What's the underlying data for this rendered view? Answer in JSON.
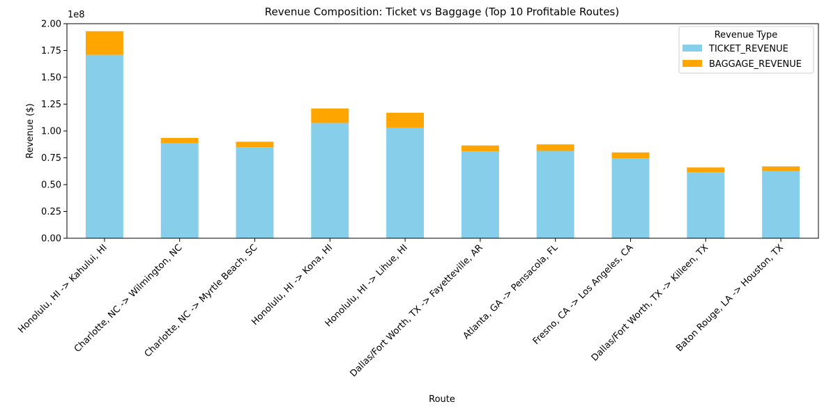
{
  "chart_data": {
    "type": "bar",
    "stacked": true,
    "title": "Revenue Composition: Ticket vs Baggage (Top 10 Profitable Routes)",
    "xlabel": "Route",
    "ylabel": "Revenue ($)",
    "y_multiplier_label": "1e8",
    "ylim": [
      0,
      200000000
    ],
    "yticks": [
      0,
      25000000,
      50000000,
      75000000,
      100000000,
      125000000,
      150000000,
      175000000,
      200000000
    ],
    "ytick_labels": [
      "0.00",
      "0.25",
      "0.50",
      "0.75",
      "1.00",
      "1.25",
      "1.50",
      "1.75",
      "2.00"
    ],
    "grid": false,
    "legend_position": "top-right",
    "legend_title": "Revenue Type",
    "categories": [
      "Honolulu, HI -> Kahului, HI",
      "Charlotte, NC -> Wilmington, NC",
      "Charlotte, NC -> Myrtle Beach, SC",
      "Honolulu, HI -> Kona, HI",
      "Honolulu, HI -> Lihue, HI",
      "Dallas/Fort Worth, TX -> Fayetteville, AR",
      "Atlanta, GA -> Pensacola, FL",
      "Fresno, CA -> Los Angeles, CA",
      "Dallas/Fort Worth, TX -> Killeen, TX",
      "Baton Rouge, LA -> Houston, TX"
    ],
    "series": [
      {
        "name": "TICKET_REVENUE",
        "color": "#87ceeb",
        "values": [
          171000000,
          88500000,
          85000000,
          107500000,
          103000000,
          81000000,
          81500000,
          74500000,
          61500000,
          62500000
        ]
      },
      {
        "name": "BAGGAGE_REVENUE",
        "color": "#ffa500",
        "values": [
          22000000,
          5000000,
          5000000,
          13500000,
          14000000,
          5500000,
          6000000,
          5500000,
          4500000,
          4500000
        ]
      }
    ]
  }
}
